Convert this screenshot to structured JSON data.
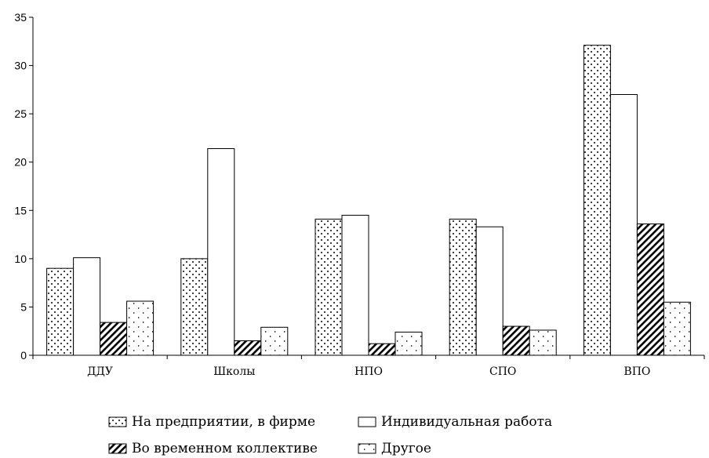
{
  "chart_data": {
    "type": "bar",
    "categories": [
      "ДДУ",
      "Школы",
      "НПО",
      "СПО",
      "ВПО"
    ],
    "ylim": [
      0,
      35
    ],
    "yticks": [
      0,
      5,
      10,
      15,
      20,
      25,
      30,
      35
    ],
    "grid": false,
    "legend_position": "bottom",
    "series": [
      {
        "name": "На предприятии, в фирме",
        "pattern": "dots",
        "values": [
          9.0,
          10.0,
          14.1,
          14.1,
          32.1
        ]
      },
      {
        "name": "Индивидуальная работа",
        "pattern": "empty",
        "values": [
          10.1,
          21.4,
          14.5,
          13.3,
          27.0
        ]
      },
      {
        "name": "Во временном коллективе",
        "pattern": "diagonal",
        "values": [
          3.4,
          1.5,
          1.2,
          3.0,
          13.6
        ]
      },
      {
        "name": "Другое",
        "pattern": "arrows",
        "values": [
          5.6,
          2.9,
          2.4,
          2.6,
          5.5
        ]
      }
    ]
  }
}
